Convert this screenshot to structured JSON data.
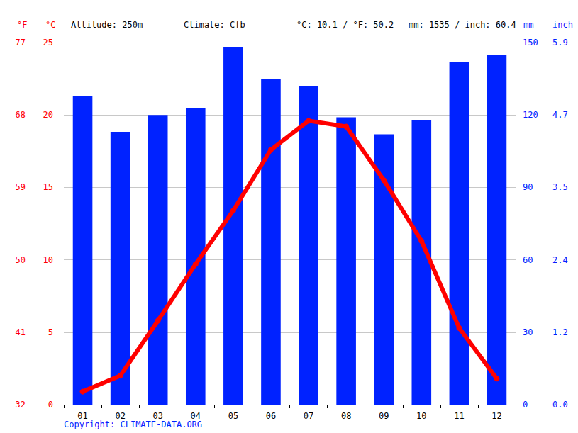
{
  "chart_data": {
    "type": "bar",
    "categories": [
      "01",
      "02",
      "03",
      "04",
      "05",
      "06",
      "07",
      "08",
      "09",
      "10",
      "11",
      "12"
    ],
    "series": [
      {
        "type": "bar",
        "axis": "y2",
        "color": "#0022ff",
        "values": [
          128,
          113,
          120,
          123,
          148,
          135,
          132,
          119,
          112,
          118,
          142,
          145
        ]
      },
      {
        "type": "line",
        "color": "#ff0000",
        "marker": "circle",
        "line_style": "solid",
        "values": [
          0.9,
          2.0,
          5.8,
          9.7,
          13.4,
          17.6,
          19.6,
          19.2,
          15.5,
          11.3,
          5.3,
          1.8
        ]
      }
    ],
    "ylabel": "°C",
    "ylim": [
      0,
      25
    ],
    "yticks": [
      0,
      5,
      10,
      15,
      20,
      25
    ],
    "y3label": "°F",
    "y3lim": [
      32,
      77
    ],
    "y3ticks": [
      32,
      41,
      50,
      59,
      68,
      77
    ],
    "y2label": "mm",
    "y2lim": [
      0,
      150
    ],
    "y2ticks": [
      0,
      30,
      60,
      90,
      120,
      150
    ],
    "y4label": "inch",
    "y4lim": [
      0,
      5.906
    ],
    "y4ticks": [
      {
        "value": 0,
        "label": "0.0"
      },
      {
        "value": 1.181,
        "label": "1.2"
      },
      {
        "value": 2.362,
        "label": "2.4"
      },
      {
        "value": 3.543,
        "label": "3.5"
      },
      {
        "value": 4.724,
        "label": "4.7"
      },
      {
        "value": 5.906,
        "label": "5.9"
      }
    ],
    "annotations": [
      "Altitude: 250m",
      "Climate: Cfb",
      "°C: 10.1 / °F: 50.2",
      "mm: 1535 / inch: 60.4",
      "Copyright: CLIMATE-DATA.ORG"
    ],
    "grid": true
  }
}
